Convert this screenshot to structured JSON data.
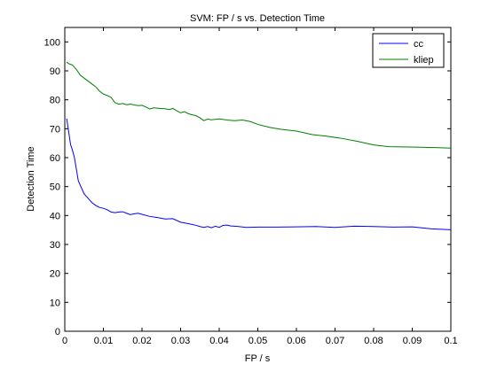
{
  "chart_data": {
    "type": "line",
    "title": "SVM: FP / s vs. Detection Time",
    "xlabel": "FP / s",
    "ylabel": "Detection Time",
    "xlim": [
      0,
      0.1
    ],
    "ylim": [
      0,
      105
    ],
    "xticks": [
      0,
      0.01,
      0.02,
      0.03,
      0.04,
      0.05,
      0.06,
      0.07,
      0.08,
      0.09,
      0.1
    ],
    "xtick_labels": [
      "0",
      "0.01",
      "0.02",
      "0.03",
      "0.04",
      "0.05",
      "0.06",
      "0.07",
      "0.08",
      "0.09",
      "0.1"
    ],
    "yticks": [
      0,
      10,
      20,
      30,
      40,
      50,
      60,
      70,
      80,
      90,
      100
    ],
    "ytick_labels": [
      "0",
      "10",
      "20",
      "30",
      "40",
      "50",
      "60",
      "70",
      "80",
      "90",
      "100"
    ],
    "grid": false,
    "legend": "top-right",
    "series": [
      {
        "name": "cc",
        "color": "#0000ff",
        "x": [
          0.0005,
          0.001,
          0.0015,
          0.002,
          0.0025,
          0.003,
          0.0035,
          0.004,
          0.005,
          0.006,
          0.007,
          0.008,
          0.009,
          0.01,
          0.011,
          0.012,
          0.013,
          0.014,
          0.015,
          0.016,
          0.017,
          0.018,
          0.019,
          0.02,
          0.022,
          0.024,
          0.026,
          0.028,
          0.03,
          0.032,
          0.034,
          0.035,
          0.036,
          0.037,
          0.038,
          0.039,
          0.04,
          0.041,
          0.042,
          0.043,
          0.044,
          0.045,
          0.047,
          0.05,
          0.055,
          0.06,
          0.065,
          0.07,
          0.075,
          0.08,
          0.085,
          0.09,
          0.095,
          0.1
        ],
        "y": [
          73.5,
          69,
          64.5,
          62.5,
          60,
          56,
          52,
          50.5,
          47.5,
          46,
          44.5,
          43.5,
          42.8,
          42.5,
          42,
          41.2,
          41,
          41.2,
          41.3,
          40.8,
          40.3,
          40.6,
          40.8,
          40.4,
          39.7,
          39.3,
          38.8,
          38.9,
          37.7,
          37.2,
          36.6,
          36.2,
          35.9,
          36.2,
          35.8,
          36.3,
          35.9,
          36.6,
          36.7,
          36.4,
          36.3,
          36.2,
          35.9,
          36.0,
          36.0,
          36.1,
          36.2,
          35.9,
          36.3,
          36.2,
          36.0,
          36.1,
          35.4,
          35.1
        ]
      },
      {
        "name": "kliep",
        "color": "#007f00",
        "x": [
          0.0005,
          0.001,
          0.002,
          0.003,
          0.004,
          0.005,
          0.006,
          0.007,
          0.008,
          0.009,
          0.01,
          0.011,
          0.012,
          0.013,
          0.014,
          0.015,
          0.016,
          0.017,
          0.018,
          0.019,
          0.02,
          0.021,
          0.022,
          0.023,
          0.024,
          0.025,
          0.026,
          0.027,
          0.028,
          0.029,
          0.03,
          0.031,
          0.032,
          0.033,
          0.034,
          0.035,
          0.036,
          0.037,
          0.038,
          0.04,
          0.042,
          0.044,
          0.046,
          0.048,
          0.05,
          0.053,
          0.056,
          0.06,
          0.064,
          0.068,
          0.072,
          0.076,
          0.08,
          0.084,
          0.088,
          0.092,
          0.096,
          0.1
        ],
        "y": [
          93,
          92.5,
          92,
          90.5,
          88.5,
          87.5,
          86.5,
          85.5,
          84.5,
          83,
          82,
          81.5,
          80.8,
          79,
          78.5,
          78.7,
          78.3,
          78.5,
          78.2,
          78.0,
          78.1,
          77.5,
          76.8,
          77.2,
          77.1,
          77.0,
          76.9,
          76.6,
          77.0,
          76.2,
          75.5,
          75.9,
          75.2,
          74.8,
          74.5,
          73.8,
          72.8,
          73.3,
          73.1,
          73.4,
          73.0,
          72.8,
          73.0,
          72.5,
          71.5,
          70.5,
          69.8,
          69.2,
          68.0,
          67.4,
          66.6,
          65.6,
          64.4,
          63.8,
          63.7,
          63.6,
          63.5,
          63.3
        ]
      }
    ]
  }
}
